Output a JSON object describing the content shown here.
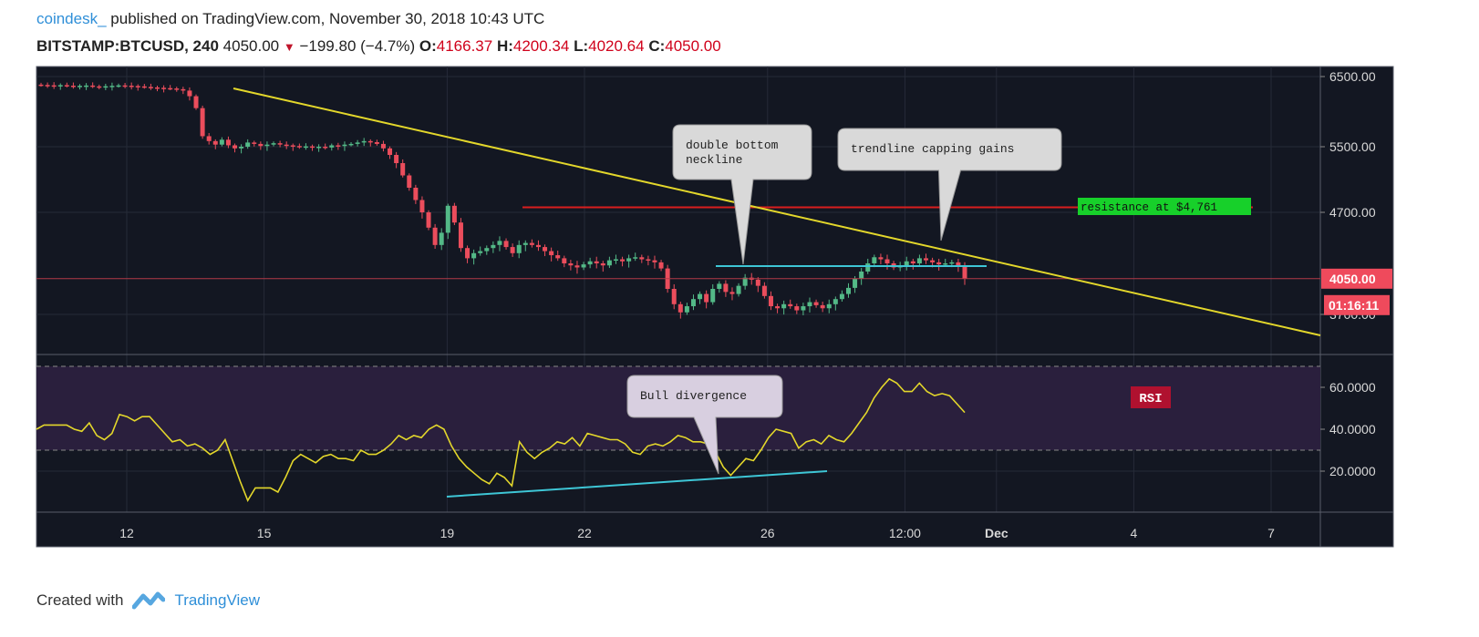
{
  "header": {
    "user": "coindesk_",
    "published_text": "published on TradingView.com, November 30, 2018 10:43 UTC",
    "symbol": "BITSTAMP:BTCUSD, 240",
    "last": "4050.00",
    "change": "−199.80 (−4.7%)",
    "o_label": "O:",
    "o_value": "4166.37",
    "h_label": "H:",
    "h_value": "4200.34",
    "l_label": "L:",
    "l_value": "4020.64",
    "c_label": "C:",
    "c_value": "4050.00"
  },
  "footer": {
    "created_with": "Created with",
    "brand": "TradingView"
  },
  "colors": {
    "bg": "#131722",
    "up": "#53b987",
    "down": "#eb4d5c",
    "trendline": "#e3d72b",
    "resistance": "#d91e1e",
    "neckline": "#3ec6d6",
    "rsi_line": "#e3d72b",
    "rsi_band": "#2a1f3d",
    "price_badge": "#ef4a5c",
    "resistance_badge": "#17d02a"
  },
  "price_axis": {
    "ticks": [
      "6500.00",
      "5500.00",
      "4700.00",
      "3700.00"
    ],
    "current_price": "4050.00",
    "countdown": "01:16:11"
  },
  "rsi_axis": {
    "ticks": [
      "60.0000",
      "40.0000",
      "20.0000"
    ],
    "label": "RSI"
  },
  "time_axis": {
    "ticks": [
      "12",
      "15",
      "19",
      "22",
      "26",
      "12:00",
      "Dec",
      "4",
      "7"
    ]
  },
  "annotations": {
    "double_bottom": "double bottom\nneckline",
    "trendline": "trendline capping gains",
    "resistance": "resistance at $4,761",
    "bull_divergence": "Bull divergence"
  },
  "chart_data": [
    {
      "type": "candlestick",
      "title": "BITSTAMP:BTCUSD, 240",
      "ylim": [
        3250,
        6600
      ],
      "close_series": [
        6380,
        6375,
        6372,
        6378,
        6370,
        6365,
        6368,
        6372,
        6360,
        6355,
        6362,
        6368,
        6374,
        6370,
        6365,
        6360,
        6352,
        6345,
        6340,
        6335,
        6330,
        6320,
        6300,
        6220,
        6050,
        5650,
        5580,
        5530,
        5600,
        5520,
        5480,
        5500,
        5560,
        5540,
        5510,
        5530,
        5550,
        5530,
        5520,
        5510,
        5500,
        5505,
        5498,
        5500,
        5490,
        5520,
        5510,
        5530,
        5540,
        5560,
        5580,
        5565,
        5540,
        5480,
        5400,
        5300,
        5150,
        5000,
        4850,
        4700,
        4550,
        4380,
        4500,
        4780,
        4600,
        4350,
        4250,
        4300,
        4320,
        4350,
        4380,
        4420,
        4360,
        4300,
        4380,
        4400,
        4380,
        4360,
        4320,
        4280,
        4250,
        4200,
        4180,
        4160,
        4190,
        4220,
        4200,
        4180,
        4230,
        4240,
        4220,
        4250,
        4260,
        4240,
        4230,
        4210,
        4150,
        3950,
        3800,
        3720,
        3780,
        3850,
        3900,
        3820,
        3950,
        4000,
        3920,
        3900,
        3980,
        4060,
        4040,
        3980,
        3880,
        3780,
        3760,
        3800,
        3780,
        3740,
        3780,
        3820,
        3790,
        3760,
        3800,
        3850,
        3900,
        3960,
        4050,
        4120,
        4200,
        4260,
        4240,
        4200,
        4160,
        4180,
        4220,
        4200,
        4250,
        4230,
        4210,
        4190,
        4200,
        4210,
        4166,
        4050
      ],
      "drawings": {
        "trendline": {
          "from": [
            "Nov 14",
            6310
          ],
          "to": [
            "Dec 8",
            3540
          ]
        },
        "resistance_level": 4761,
        "double_bottom_neckline": 4150,
        "current_price": 4050
      }
    },
    {
      "type": "line",
      "ylabel": "RSI",
      "ylim": [
        0,
        75
      ],
      "bands": [
        30,
        70
      ],
      "values": [
        40,
        42,
        42,
        42,
        42,
        40,
        39,
        43,
        37,
        35,
        38,
        47,
        46,
        44,
        46,
        46,
        42,
        38,
        34,
        35,
        32,
        33,
        31,
        28,
        30,
        35,
        25,
        15,
        6,
        12,
        12,
        12,
        10,
        17,
        25,
        28,
        26,
        24,
        27,
        28,
        26,
        26,
        25,
        30,
        28,
        28,
        30,
        33,
        37,
        35,
        37,
        36,
        40,
        42,
        40,
        32,
        26,
        22,
        19,
        16,
        14,
        19,
        17,
        13,
        34,
        29,
        26,
        29,
        31,
        34,
        33,
        36,
        32,
        38,
        37,
        36,
        35,
        35,
        33,
        29,
        28,
        32,
        33,
        32,
        34,
        37,
        36,
        34,
        34,
        33,
        29,
        22,
        18,
        22,
        26,
        25,
        30,
        36,
        40,
        39,
        38,
        31,
        34,
        35,
        33,
        37,
        35,
        34,
        38,
        43,
        48,
        55,
        60,
        64,
        62,
        58,
        58,
        62,
        58,
        56,
        57,
        56,
        52,
        48
      ],
      "divergence_line": {
        "from": [
          "Nov 19",
          8
        ],
        "to": [
          "Nov 28",
          19
        ]
      }
    }
  ]
}
